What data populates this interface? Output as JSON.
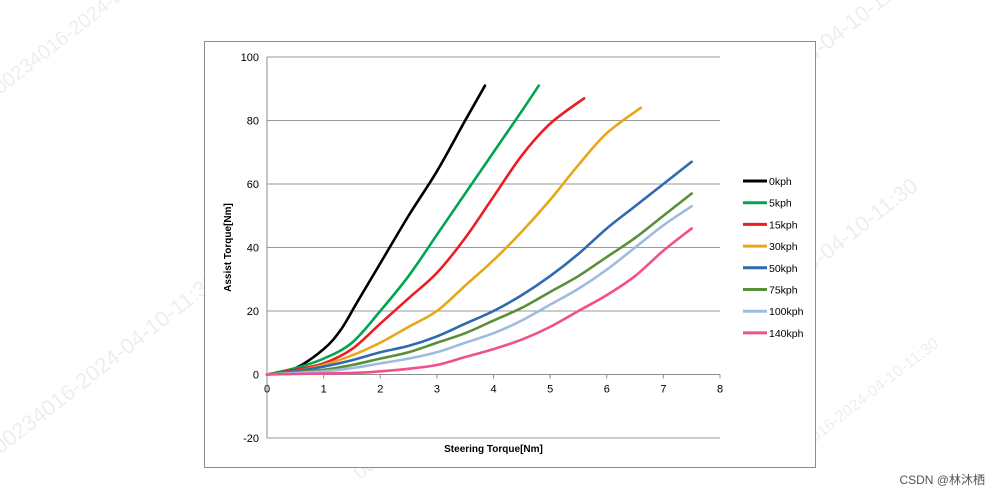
{
  "chart_data": {
    "type": "line",
    "xlabel": "Steering Torque[Nm]",
    "ylabel": "Assist Torque[Nm]",
    "xlim": [
      0,
      8
    ],
    "ylim": [
      -20,
      100
    ],
    "xticks": [
      0,
      1,
      2,
      3,
      4,
      5,
      6,
      7,
      8
    ],
    "yticks": [
      -20,
      0,
      20,
      40,
      60,
      80,
      100
    ],
    "grid": "horizontal",
    "legend_position": "right",
    "series": [
      {
        "name": "0kph",
        "color": "#000000",
        "points": [
          [
            0,
            0
          ],
          [
            0.5,
            2
          ],
          [
            1,
            8
          ],
          [
            1.3,
            14
          ],
          [
            1.6,
            23
          ],
          [
            2,
            35
          ],
          [
            2.5,
            50
          ],
          [
            3,
            64
          ],
          [
            3.5,
            80
          ],
          [
            3.85,
            91
          ]
        ]
      },
      {
        "name": "5kph",
        "color": "#00a550",
        "points": [
          [
            0,
            0
          ],
          [
            0.5,
            2
          ],
          [
            1,
            5
          ],
          [
            1.5,
            10
          ],
          [
            2,
            20
          ],
          [
            2.5,
            31
          ],
          [
            3,
            44
          ],
          [
            3.5,
            57
          ],
          [
            4,
            70
          ],
          [
            4.5,
            83
          ],
          [
            4.8,
            91
          ]
        ]
      },
      {
        "name": "15kph",
        "color": "#ed1c24",
        "points": [
          [
            0,
            0
          ],
          [
            0.5,
            1.5
          ],
          [
            1,
            3.5
          ],
          [
            1.5,
            8
          ],
          [
            2,
            16
          ],
          [
            2.5,
            24
          ],
          [
            3,
            32
          ],
          [
            3.5,
            43
          ],
          [
            4,
            56
          ],
          [
            4.5,
            69
          ],
          [
            5,
            79
          ],
          [
            5.6,
            87
          ]
        ]
      },
      {
        "name": "30kph",
        "color": "#e6a817",
        "points": [
          [
            0,
            0
          ],
          [
            0.5,
            1
          ],
          [
            1,
            3
          ],
          [
            1.5,
            6
          ],
          [
            2,
            10
          ],
          [
            2.5,
            15
          ],
          [
            3,
            20
          ],
          [
            3.5,
            28
          ],
          [
            4,
            36
          ],
          [
            4.5,
            45
          ],
          [
            5,
            55
          ],
          [
            5.5,
            66
          ],
          [
            6,
            76
          ],
          [
            6.6,
            84
          ]
        ]
      },
      {
        "name": "50kph",
        "color": "#2e6aad",
        "points": [
          [
            0,
            0
          ],
          [
            0.5,
            1
          ],
          [
            1,
            2.5
          ],
          [
            1.5,
            4.5
          ],
          [
            2,
            7
          ],
          [
            2.5,
            9
          ],
          [
            3,
            12
          ],
          [
            3.5,
            16
          ],
          [
            4,
            20
          ],
          [
            4.5,
            25
          ],
          [
            5,
            31
          ],
          [
            5.5,
            38
          ],
          [
            6,
            46
          ],
          [
            6.5,
            53
          ],
          [
            7,
            60
          ],
          [
            7.5,
            67
          ]
        ]
      },
      {
        "name": "75kph",
        "color": "#5a8f3a",
        "points": [
          [
            0,
            0
          ],
          [
            1,
            1.5
          ],
          [
            1.5,
            3
          ],
          [
            2,
            5
          ],
          [
            2.5,
            7
          ],
          [
            3,
            10
          ],
          [
            3.5,
            13
          ],
          [
            4,
            17
          ],
          [
            4.5,
            21
          ],
          [
            5,
            26
          ],
          [
            5.5,
            31
          ],
          [
            6,
            37
          ],
          [
            6.5,
            43
          ],
          [
            7,
            50
          ],
          [
            7.5,
            57
          ]
        ]
      },
      {
        "name": "100kph",
        "color": "#9dbce0",
        "points": [
          [
            0,
            0
          ],
          [
            1,
            1
          ],
          [
            1.5,
            2
          ],
          [
            2,
            3.5
          ],
          [
            2.5,
            5
          ],
          [
            3,
            7
          ],
          [
            3.5,
            10
          ],
          [
            4,
            13
          ],
          [
            4.5,
            17
          ],
          [
            5,
            22
          ],
          [
            5.5,
            27
          ],
          [
            6,
            33
          ],
          [
            6.5,
            40
          ],
          [
            7,
            47
          ],
          [
            7.5,
            53
          ]
        ]
      },
      {
        "name": "140kph",
        "color": "#f0508c",
        "points": [
          [
            0,
            0
          ],
          [
            1.5,
            0.5
          ],
          [
            2,
            1
          ],
          [
            2.5,
            1.8
          ],
          [
            3,
            3
          ],
          [
            3.5,
            5.5
          ],
          [
            4,
            8
          ],
          [
            4.5,
            11
          ],
          [
            5,
            15
          ],
          [
            5.5,
            20
          ],
          [
            6,
            25
          ],
          [
            6.5,
            31
          ],
          [
            7,
            39
          ],
          [
            7.5,
            46
          ]
        ]
      }
    ]
  },
  "watermark": {
    "text": "00234016-2024-04-10-11:30",
    "text_alt": "00234016-2024-04-10-11:29"
  },
  "credit": "CSDN @林沐栖"
}
